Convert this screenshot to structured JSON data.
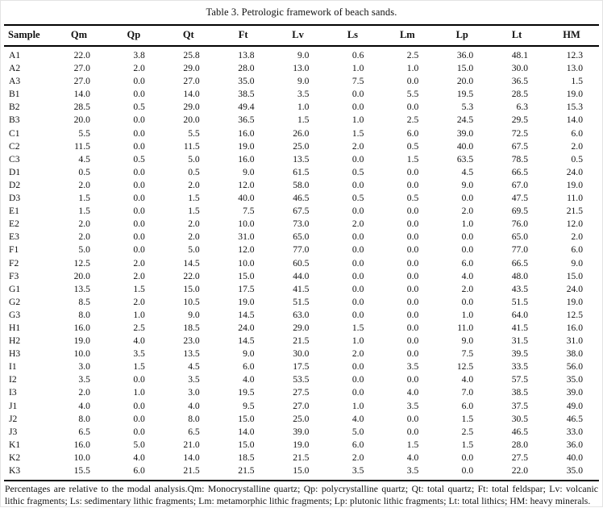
{
  "title": "Table 3. Petrologic framework of beach sands.",
  "table": {
    "columns": [
      "Sample",
      "Qm",
      "Qp",
      "Qt",
      "Ft",
      "Lv",
      "Ls",
      "Lm",
      "Lp",
      "Lt",
      "HM"
    ],
    "rows": [
      [
        "A1",
        "22.0",
        "3.8",
        "25.8",
        "13.8",
        "9.0",
        "0.6",
        "2.5",
        "36.0",
        "48.1",
        "12.3"
      ],
      [
        "A2",
        "27.0",
        "2.0",
        "29.0",
        "28.0",
        "13.0",
        "1.0",
        "1.0",
        "15.0",
        "30.0",
        "13.0"
      ],
      [
        "A3",
        "27.0",
        "0.0",
        "27.0",
        "35.0",
        "9.0",
        "7.5",
        "0.0",
        "20.0",
        "36.5",
        "1.5"
      ],
      [
        "B1",
        "14.0",
        "0.0",
        "14.0",
        "38.5",
        "3.5",
        "0.0",
        "5.5",
        "19.5",
        "28.5",
        "19.0"
      ],
      [
        "B2",
        "28.5",
        "0.5",
        "29.0",
        "49.4",
        "1.0",
        "0.0",
        "0.0",
        "5.3",
        "6.3",
        "15.3"
      ],
      [
        "B3",
        "20.0",
        "0.0",
        "20.0",
        "36.5",
        "1.5",
        "1.0",
        "2.5",
        "24.5",
        "29.5",
        "14.0"
      ],
      [
        "C1",
        "5.5",
        "0.0",
        "5.5",
        "16.0",
        "26.0",
        "1.5",
        "6.0",
        "39.0",
        "72.5",
        "6.0"
      ],
      [
        "C2",
        "11.5",
        "0.0",
        "11.5",
        "19.0",
        "25.0",
        "2.0",
        "0.5",
        "40.0",
        "67.5",
        "2.0"
      ],
      [
        "C3",
        "4.5",
        "0.5",
        "5.0",
        "16.0",
        "13.5",
        "0.0",
        "1.5",
        "63.5",
        "78.5",
        "0.5"
      ],
      [
        "D1",
        "0.5",
        "0.0",
        "0.5",
        "9.0",
        "61.5",
        "0.5",
        "0.0",
        "4.5",
        "66.5",
        "24.0"
      ],
      [
        "D2",
        "2.0",
        "0.0",
        "2.0",
        "12.0",
        "58.0",
        "0.0",
        "0.0",
        "9.0",
        "67.0",
        "19.0"
      ],
      [
        "D3",
        "1.5",
        "0.0",
        "1.5",
        "40.0",
        "46.5",
        "0.5",
        "0.5",
        "0.0",
        "47.5",
        "11.0"
      ],
      [
        "E1",
        "1.5",
        "0.0",
        "1.5",
        "7.5",
        "67.5",
        "0.0",
        "0.0",
        "2.0",
        "69.5",
        "21.5"
      ],
      [
        "E2",
        "2.0",
        "0.0",
        "2.0",
        "10.0",
        "73.0",
        "2.0",
        "0.0",
        "1.0",
        "76.0",
        "12.0"
      ],
      [
        "E3",
        "2.0",
        "0.0",
        "2.0",
        "31.0",
        "65.0",
        "0.0",
        "0.0",
        "0.0",
        "65.0",
        "2.0"
      ],
      [
        "F1",
        "5.0",
        "0.0",
        "5.0",
        "12.0",
        "77.0",
        "0.0",
        "0.0",
        "0.0",
        "77.0",
        "6.0"
      ],
      [
        "F2",
        "12.5",
        "2.0",
        "14.5",
        "10.0",
        "60.5",
        "0.0",
        "0.0",
        "6.0",
        "66.5",
        "9.0"
      ],
      [
        "F3",
        "20.0",
        "2.0",
        "22.0",
        "15.0",
        "44.0",
        "0.0",
        "0.0",
        "4.0",
        "48.0",
        "15.0"
      ],
      [
        "G1",
        "13.5",
        "1.5",
        "15.0",
        "17.5",
        "41.5",
        "0.0",
        "0.0",
        "2.0",
        "43.5",
        "24.0"
      ],
      [
        "G2",
        "8.5",
        "2.0",
        "10.5",
        "19.0",
        "51.5",
        "0.0",
        "0.0",
        "0.0",
        "51.5",
        "19.0"
      ],
      [
        "G3",
        "8.0",
        "1.0",
        "9.0",
        "14.5",
        "63.0",
        "0.0",
        "0.0",
        "1.0",
        "64.0",
        "12.5"
      ],
      [
        "H1",
        "16.0",
        "2.5",
        "18.5",
        "24.0",
        "29.0",
        "1.5",
        "0.0",
        "11.0",
        "41.5",
        "16.0"
      ],
      [
        "H2",
        "19.0",
        "4.0",
        "23.0",
        "14.5",
        "21.5",
        "1.0",
        "0.0",
        "9.0",
        "31.5",
        "31.0"
      ],
      [
        "H3",
        "10.0",
        "3.5",
        "13.5",
        "9.0",
        "30.0",
        "2.0",
        "0.0",
        "7.5",
        "39.5",
        "38.0"
      ],
      [
        "I1",
        "3.0",
        "1.5",
        "4.5",
        "6.0",
        "17.5",
        "0.0",
        "3.5",
        "12.5",
        "33.5",
        "56.0"
      ],
      [
        "I2",
        "3.5",
        "0.0",
        "3.5",
        "4.0",
        "53.5",
        "0.0",
        "0.0",
        "4.0",
        "57.5",
        "35.0"
      ],
      [
        "I3",
        "2.0",
        "1.0",
        "3.0",
        "19.5",
        "27.5",
        "0.0",
        "4.0",
        "7.0",
        "38.5",
        "39.0"
      ],
      [
        "J1",
        "4.0",
        "0.0",
        "4.0",
        "9.5",
        "27.0",
        "1.0",
        "3.5",
        "6.0",
        "37.5",
        "49.0"
      ],
      [
        "J2",
        "8.0",
        "0.0",
        "8.0",
        "15.0",
        "25.0",
        "4.0",
        "0.0",
        "1.5",
        "30.5",
        "46.5"
      ],
      [
        "J3",
        "6.5",
        "0.0",
        "6.5",
        "14.0",
        "39.0",
        "5.0",
        "0.0",
        "2.5",
        "46.5",
        "33.0"
      ],
      [
        "K1",
        "16.0",
        "5.0",
        "21.0",
        "15.0",
        "19.0",
        "6.0",
        "1.5",
        "1.5",
        "28.0",
        "36.0"
      ],
      [
        "K2",
        "10.0",
        "4.0",
        "14.0",
        "18.5",
        "21.5",
        "2.0",
        "4.0",
        "0.0",
        "27.5",
        "40.0"
      ],
      [
        "K3",
        "15.5",
        "6.0",
        "21.5",
        "21.5",
        "15.0",
        "3.5",
        "3.5",
        "0.0",
        "22.0",
        "35.0"
      ]
    ]
  },
  "footnote": "Percentages are relative to the modal analysis.Qm: Monocrystalline quartz; Qp: polycrystalline quartz; Qt: total quartz; Ft: total feldspar; Lv: volcanic lithic fragments; Ls: sedimentary lithic fragments; Lm: metamorphic lithic fragments; Lp: plutonic lithic fragments; Lt: total lithics; HM: heavy minerals."
}
